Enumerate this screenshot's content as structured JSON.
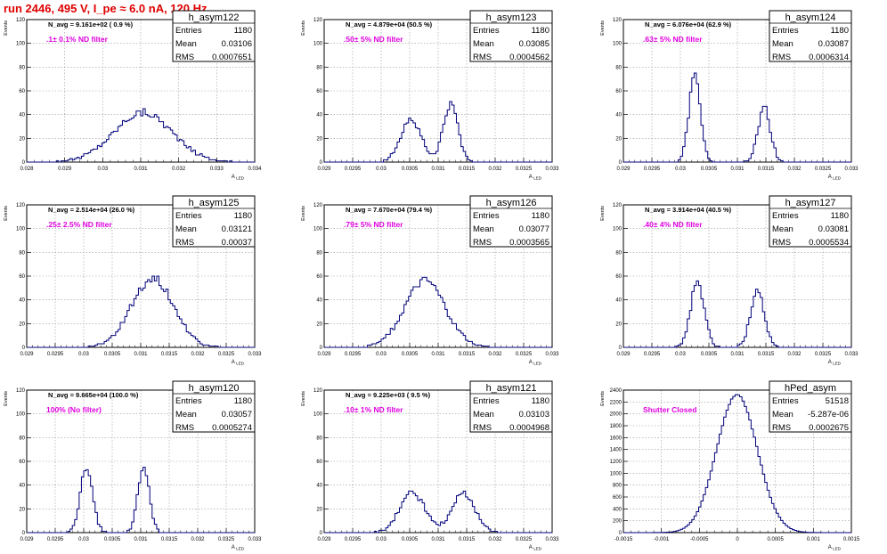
{
  "page_title": "run 2446,   495 V, I_pe ≈ 6.0 nA, 120 Hz",
  "axis": {
    "ylabel": "Events",
    "xlabel": "A",
    "xlabel_sub": "LED"
  },
  "stats_labels": {
    "entries": "Entries",
    "mean": "Mean",
    "rms": "RMS"
  },
  "colors": {
    "hist": "#00007a",
    "filter_text": "#e000e0",
    "title": "#e00000"
  },
  "chart_data": [
    {
      "type": "bar",
      "name": "h_asym122",
      "navg": "N_avg = 9.161e+02 ( 0.9 %)",
      "filter": ".1± 0.1% ND filter",
      "entries": "1180",
      "mean": "0.03106",
      "rms": "0.0007651",
      "xlim": [
        0.028,
        0.034
      ],
      "xticks": [
        "0.028",
        "0.029",
        "0.03",
        "0.031",
        "0.032",
        "0.033",
        "0.034"
      ],
      "ylim": [
        0,
        120
      ],
      "yticks": [
        "0",
        "20",
        "40",
        "60",
        "80",
        "100",
        "120"
      ],
      "center": 0.03106,
      "sigma": 0.0007651,
      "peak": 42,
      "spread": 0.45,
      "mode": "single",
      "nbins": 100
    },
    {
      "type": "bar",
      "name": "h_asym123",
      "navg": "N_avg = 4.879e+04 (50.5 %)",
      "filter": ".50± 5% ND filter",
      "entries": "1180",
      "mean": "0.03085",
      "rms": "0.0004562",
      "xlim": [
        0.029,
        0.033
      ],
      "xticks": [
        "0.029",
        "0.0295",
        "0.03",
        "0.0305",
        "0.031",
        "0.0315",
        "0.032",
        "0.0325",
        "0.033"
      ],
      "ylim": [
        0,
        120
      ],
      "yticks": [
        "0",
        "20",
        "40",
        "60",
        "80",
        "100",
        "120"
      ],
      "peaks": [
        {
          "c": 0.03052,
          "s": 0.00018,
          "h": 36
        },
        {
          "c": 0.03122,
          "s": 0.00013,
          "h": 48
        }
      ],
      "mode": "double",
      "nbins": 100
    },
    {
      "type": "bar",
      "name": "h_asym124",
      "navg": "N_avg = 6.076e+04 (62.9 %)",
      "filter": ".63± 5% ND filter",
      "entries": "1180",
      "mean": "0.03087",
      "rms": "0.0006314",
      "xlim": [
        0.029,
        0.033
      ],
      "xticks": [
        "0.029",
        "0.0295",
        "0.03",
        "0.0305",
        "0.031",
        "0.0315",
        "0.032",
        "0.0325",
        "0.033"
      ],
      "ylim": [
        0,
        120
      ],
      "yticks": [
        "0",
        "20",
        "40",
        "60",
        "80",
        "100",
        "120"
      ],
      "peaks": [
        {
          "c": 0.03025,
          "s": 0.0001,
          "h": 72
        },
        {
          "c": 0.03147,
          "s": 0.00011,
          "h": 46
        }
      ],
      "mode": "double",
      "nbins": 100
    },
    {
      "type": "bar",
      "name": "h_asym125",
      "navg": "N_avg = 2.514e+04 (26.0 %)",
      "filter": ".25± 2.5% ND filter",
      "entries": "1180",
      "mean": "0.03121",
      "rms": "0.00037",
      "xlim": [
        0.029,
        0.033
      ],
      "xticks": [
        "0.029",
        "0.0295",
        "0.03",
        "0.0305",
        "0.031",
        "0.0315",
        "0.032",
        "0.0325",
        "0.033"
      ],
      "ylim": [
        0,
        120
      ],
      "yticks": [
        "0",
        "20",
        "40",
        "60",
        "80",
        "100",
        "120"
      ],
      "center": 0.03121,
      "sigma": 0.00037,
      "peak": 58,
      "spread": 0.45,
      "mode": "single",
      "nbins": 100
    },
    {
      "type": "bar",
      "name": "h_asym126",
      "navg": "N_avg = 7.670e+04 (79.4 %)",
      "filter": ".79± 5% ND filter",
      "entries": "1180",
      "mean": "0.03077",
      "rms": "0.0003565",
      "xlim": [
        0.029,
        0.033
      ],
      "xticks": [
        "0.029",
        "0.0295",
        "0.03",
        "0.0305",
        "0.031",
        "0.0315",
        "0.032",
        "0.0325",
        "0.033"
      ],
      "ylim": [
        0,
        120
      ],
      "yticks": [
        "0",
        "20",
        "40",
        "60",
        "80",
        "100",
        "120"
      ],
      "center": 0.03077,
      "sigma": 0.0003565,
      "peak": 56,
      "spread": 0.45,
      "mode": "single",
      "nbins": 100
    },
    {
      "type": "bar",
      "name": "h_asym127",
      "navg": "N_avg = 3.914e+04 (40.5 %)",
      "filter": ".40± 4% ND filter",
      "entries": "1180",
      "mean": "0.03081",
      "rms": "0.0005534",
      "xlim": [
        0.029,
        0.033
      ],
      "xticks": [
        "0.029",
        "0.0295",
        "0.03",
        "0.0305",
        "0.031",
        "0.0315",
        "0.032",
        "0.0325",
        "0.033"
      ],
      "ylim": [
        0,
        120
      ],
      "yticks": [
        "0",
        "20",
        "40",
        "60",
        "80",
        "100",
        "120"
      ],
      "peaks": [
        {
          "c": 0.0303,
          "s": 0.00012,
          "h": 55
        },
        {
          "c": 0.03135,
          "s": 0.00012,
          "h": 48
        }
      ],
      "mode": "double",
      "nbins": 100
    },
    {
      "type": "bar",
      "name": "h_asym120",
      "navg": "N_avg = 9.665e+04 (100.0 %)",
      "filter": "100% (No filter)",
      "entries": "1180",
      "mean": "0.03057",
      "rms": "0.0005274",
      "xlim": [
        0.029,
        0.033
      ],
      "xticks": [
        "0.029",
        "0.0295",
        "0.03",
        "0.0305",
        "0.031",
        "0.0315",
        "0.032",
        "0.0325",
        "0.033"
      ],
      "ylim": [
        0,
        120
      ],
      "yticks": [
        "0",
        "20",
        "40",
        "60",
        "80",
        "100",
        "120"
      ],
      "peaks": [
        {
          "c": 0.03005,
          "s": 0.00011,
          "h": 55
        },
        {
          "c": 0.03105,
          "s": 0.0001,
          "h": 56
        }
      ],
      "mode": "double",
      "nbins": 100
    },
    {
      "type": "bar",
      "name": "h_asym121",
      "navg": "N_avg = 9.225e+03 ( 9.5 %)",
      "filter": ".10± 1% ND filter",
      "entries": "1180",
      "mean": "0.03103",
      "rms": "0.0004968",
      "xlim": [
        0.029,
        0.033
      ],
      "xticks": [
        "0.029",
        "0.0295",
        "0.03",
        "0.0305",
        "0.031",
        "0.0315",
        "0.032",
        "0.0325",
        "0.033"
      ],
      "ylim": [
        0,
        120
      ],
      "yticks": [
        "0",
        "20",
        "40",
        "60",
        "80",
        "100",
        "120"
      ],
      "peaks": [
        {
          "c": 0.03055,
          "s": 0.00022,
          "h": 34
        },
        {
          "c": 0.03145,
          "s": 0.0002,
          "h": 33
        }
      ],
      "mode": "double",
      "nbins": 100
    },
    {
      "type": "bar",
      "name": "hPed_asym",
      "navg": "",
      "filter": "Shutter Closed",
      "entries": "51518",
      "mean": "-5.287e-06",
      "rms": "0.0002675",
      "xlim": [
        -0.0015,
        0.0015
      ],
      "xticks": [
        "-0.0015",
        "-0.001",
        "-0.0005",
        "0",
        "0.0005",
        "0.001",
        "0.0015"
      ],
      "ylim": [
        0,
        2400
      ],
      "yticks": [
        "0",
        "200",
        "400",
        "600",
        "800",
        "1000",
        "1200",
        "1400",
        "1600",
        "1800",
        "2000",
        "2200",
        "2400"
      ],
      "center": -5.287e-06,
      "sigma": 0.0002675,
      "peak": 2320,
      "spread": 0.06,
      "mode": "single",
      "nbins": 100
    }
  ]
}
